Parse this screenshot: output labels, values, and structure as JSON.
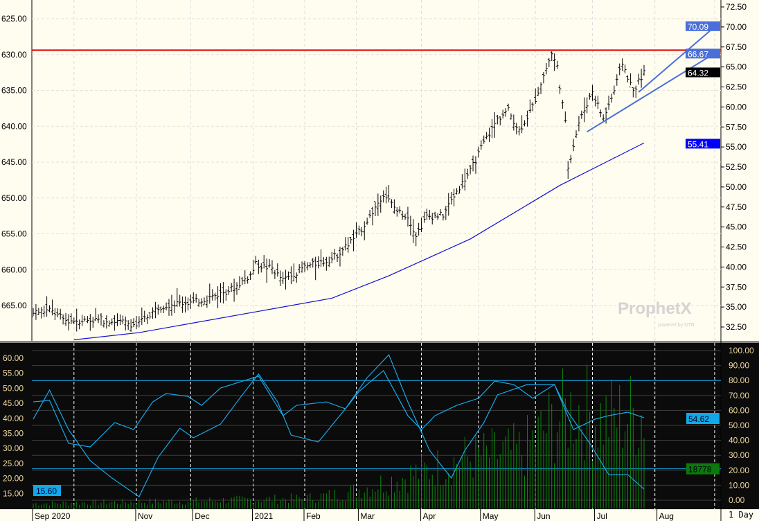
{
  "chart_data": [
    {
      "type": "ohlc",
      "panel": "price",
      "left_axis_ticks": [
        "625.00",
        "630.00",
        "635.00",
        "640.00",
        "645.00",
        "650.00",
        "655.00",
        "660.00",
        "665.00"
      ],
      "right_axis_ticks": [
        "72.50",
        "70.00",
        "67.50",
        "65.00",
        "62.50",
        "60.00",
        "57.50",
        "55.00",
        "52.50",
        "50.00",
        "47.50",
        "45.00",
        "42.50",
        "40.00",
        "37.50",
        "35.00",
        "32.50"
      ],
      "ylim": [
        32.5,
        72.5
      ],
      "close_keypoints": [
        [
          0,
          34.3
        ],
        [
          6,
          34.6
        ],
        [
          12,
          33.3
        ],
        [
          25,
          33.4
        ],
        [
          35,
          33.0
        ],
        [
          38,
          32.7
        ],
        [
          42,
          33.8
        ],
        [
          46,
          35
        ],
        [
          51,
          35.4
        ],
        [
          59,
          35.6
        ],
        [
          66,
          36.3
        ],
        [
          74,
          37.4
        ],
        [
          80,
          39
        ],
        [
          82,
          40.3
        ],
        [
          88,
          39.8
        ],
        [
          92,
          38.3
        ],
        [
          100,
          40
        ],
        [
          110,
          41
        ],
        [
          115,
          42.5
        ],
        [
          120,
          44.3
        ],
        [
          124,
          46.3
        ],
        [
          129,
          49.2
        ],
        [
          134,
          47
        ],
        [
          138,
          46.3
        ],
        [
          141,
          44
        ],
        [
          145,
          46.3
        ],
        [
          151,
          46.5
        ],
        [
          156,
          49.5
        ],
        [
          161,
          52
        ],
        [
          166,
          55.5
        ],
        [
          171,
          58.5
        ],
        [
          175,
          59.6
        ],
        [
          179,
          57
        ],
        [
          184,
          60
        ],
        [
          187,
          63
        ],
        [
          191,
          66.7
        ],
        [
          193,
          65
        ],
        [
          196,
          58
        ],
        [
          197,
          52.5
        ],
        [
          201,
          58
        ],
        [
          206,
          62
        ],
        [
          210,
          58.5
        ],
        [
          214,
          62
        ],
        [
          217,
          65.5
        ],
        [
          221,
          62
        ],
        [
          225,
          64.3
        ]
      ],
      "moving_average": [
        [
          15,
          30.9
        ],
        [
          39,
          31.8
        ],
        [
          82,
          34.4
        ],
        [
          110,
          36.1
        ],
        [
          131,
          38.9
        ],
        [
          161,
          43.5
        ],
        [
          194,
          50.2
        ],
        [
          225,
          55.5
        ]
      ],
      "resistance_level": 67.1,
      "trendlines": [
        {
          "from": [
            204,
            56.9
          ],
          "to": [
            253,
            66.9
          ]
        },
        {
          "from": [
            223,
            61.85
          ],
          "to": [
            253,
            70.3
          ]
        }
      ],
      "price_tags": [
        {
          "value": "70.09",
          "color": "#4a6fd8",
          "level": 70.09
        },
        {
          "value": "66.67",
          "color": "#4a6fd8",
          "level": 66.67
        },
        {
          "value": "64.32",
          "color": "#000000",
          "level": 64.32
        },
        {
          "value": "55.41",
          "color": "#0000ff",
          "level": 55.41
        }
      ]
    },
    {
      "type": "line+bar",
      "panel": "indicator",
      "left_axis_ticks": [
        "60.00",
        "55.00",
        "50.00",
        "45.00",
        "40.00",
        "35.00",
        "30.00",
        "25.00",
        "20.00",
        "15.00"
      ],
      "right_axis_ticks": [
        "100.00",
        "90.00",
        "80.00",
        "70.00",
        "60.00",
        "50.00",
        "40.00",
        "30.00",
        "20.00",
        "10.00",
        "0.00"
      ],
      "ylim": [
        0,
        100
      ],
      "bands": [
        80,
        21
      ],
      "series": [
        {
          "name": "slow",
          "values": [
            [
              0,
              65.7
            ],
            [
              6,
              66.7
            ],
            [
              13,
              38
            ],
            [
              21,
              35.6
            ],
            [
              30,
              51.9
            ],
            [
              37,
              47.2
            ],
            [
              44,
              65.7
            ],
            [
              49,
              71.3
            ],
            [
              57,
              69.4
            ],
            [
              62,
              63.4
            ],
            [
              69,
              75
            ],
            [
              83,
              82.9
            ],
            [
              92,
              56.5
            ],
            [
              97,
              63.4
            ],
            [
              108,
              65.7
            ],
            [
              115,
              61.1
            ],
            [
              120,
              72.7
            ],
            [
              129,
              86.6
            ],
            [
              138,
              56.5
            ],
            [
              143,
              47.2
            ],
            [
              148,
              56.5
            ],
            [
              156,
              63.4
            ],
            [
              164,
              68.1
            ],
            [
              170,
              79.6
            ],
            [
              177,
              77.3
            ],
            [
              184,
              68.1
            ],
            [
              192,
              77.3
            ],
            [
              199,
              47.2
            ],
            [
              207,
              54.2
            ],
            [
              212,
              56.5
            ],
            [
              219,
              58.8
            ],
            [
              225,
              55.1
            ]
          ]
        },
        {
          "name": "fast",
          "values": [
            [
              0,
              54.2
            ],
            [
              6,
              73.6
            ],
            [
              13,
              47.2
            ],
            [
              21,
              26.4
            ],
            [
              29,
              14.8
            ],
            [
              39,
              2.3
            ],
            [
              46,
              28.7
            ],
            [
              54,
              48.1
            ],
            [
              59,
              41.7
            ],
            [
              69,
              50.9
            ],
            [
              77,
              70.4
            ],
            [
              83,
              84.3
            ],
            [
              90,
              65.7
            ],
            [
              95,
              43.5
            ],
            [
              105,
              38.9
            ],
            [
              115,
              61.1
            ],
            [
              123,
              81.9
            ],
            [
              131,
              97.2
            ],
            [
              138,
              65.7
            ],
            [
              146,
              33.3
            ],
            [
              154,
              14.8
            ],
            [
              159,
              33.3
            ],
            [
              166,
              51.9
            ],
            [
              171,
              70.4
            ],
            [
              182,
              77.3
            ],
            [
              192,
              77.3
            ],
            [
              197,
              58.8
            ],
            [
              205,
              38
            ],
            [
              212,
              17.1
            ],
            [
              219,
              17.1
            ],
            [
              225,
              7.4
            ]
          ]
        },
        {
          "name": "volume",
          "values_envelope": [
            [
              0,
              4
            ],
            [
              60,
              6
            ],
            [
              100,
              8
            ],
            [
              115,
              12
            ],
            [
              125,
              18
            ],
            [
              145,
              30
            ],
            [
              160,
              40
            ],
            [
              180,
              45
            ],
            [
              190,
              65
            ],
            [
              200,
              80
            ],
            [
              210,
              70
            ],
            [
              225,
              75
            ]
          ]
        }
      ],
      "tags": [
        {
          "value": "15.60",
          "color": "#10a8e8"
        },
        {
          "value": "54.62",
          "color": "#10a8e8",
          "level": 54.62
        },
        {
          "value": "18778",
          "color": "#0a7a0a",
          "level": 21
        }
      ]
    }
  ],
  "x_axis": {
    "labels": [
      [
        "Sep 2020",
        0
      ],
      [
        "Nov",
        38
      ],
      [
        "Dec",
        59
      ],
      [
        "2021",
        81
      ],
      [
        "Feb",
        100
      ],
      [
        "Mar",
        120
      ],
      [
        "Apr",
        143
      ],
      [
        "May",
        165
      ],
      [
        "Jun",
        185
      ],
      [
        "Jul",
        207
      ],
      [
        "Aug",
        230
      ]
    ],
    "dividers": [
      15,
      38,
      58,
      81,
      100,
      119,
      143,
      164,
      185,
      206,
      229,
      251
    ]
  },
  "interval": "1 Day",
  "watermark": {
    "brand": "ProphetX",
    "sub": "powered by DTN"
  }
}
